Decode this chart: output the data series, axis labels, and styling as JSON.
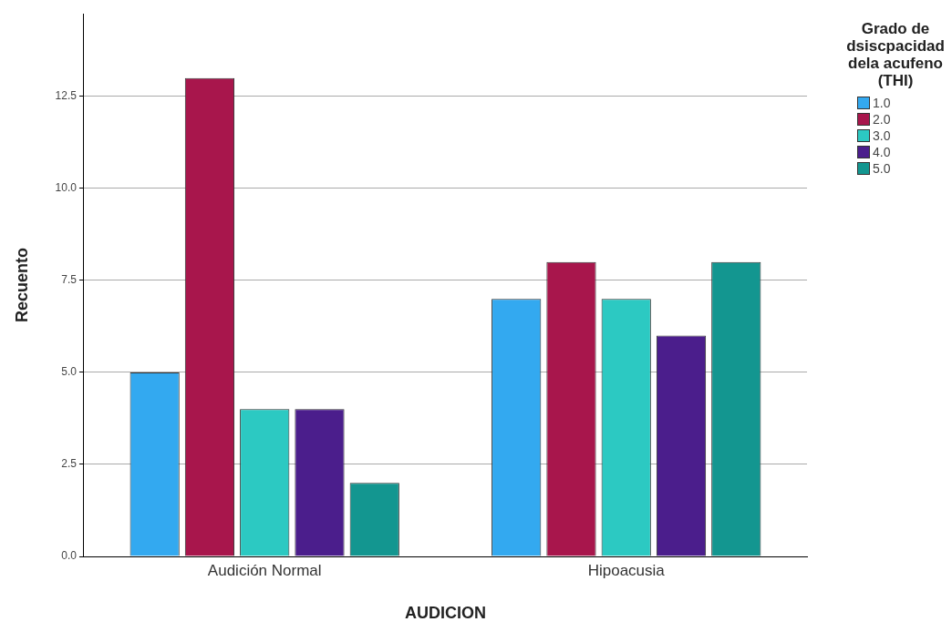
{
  "chart_data": {
    "type": "bar",
    "xlabel": "AUDICION",
    "ylabel": "Recuento",
    "legend_title": "Grado de dsiscpacidad dela acufeno (THI)",
    "legend": "top right",
    "grid": "y",
    "categories": [
      "Audición Normal",
      "Hipoacusia"
    ],
    "ylim": [
      0,
      14.75
    ],
    "yticks": [
      {
        "value": 0,
        "label": "0.0"
      },
      {
        "value": 2.5,
        "label": "2.5"
      },
      {
        "value": 5,
        "label": "5.0"
      },
      {
        "value": 7.5,
        "label": "7.5"
      },
      {
        "value": 10,
        "label": "10.0"
      },
      {
        "value": 12.5,
        "label": "12.5"
      }
    ],
    "series": [
      {
        "name": "1.0",
        "color": "#33a9f0",
        "values": [
          5,
          7
        ]
      },
      {
        "name": "2.0",
        "color": "#a8164c",
        "values": [
          13,
          8
        ]
      },
      {
        "name": "3.0",
        "color": "#2cc9c2",
        "values": [
          4,
          7
        ]
      },
      {
        "name": "4.0",
        "color": "#4b1e8c",
        "values": [
          4,
          6
        ]
      },
      {
        "name": "5.0",
        "color": "#139690",
        "values": [
          2,
          8
        ]
      }
    ]
  }
}
